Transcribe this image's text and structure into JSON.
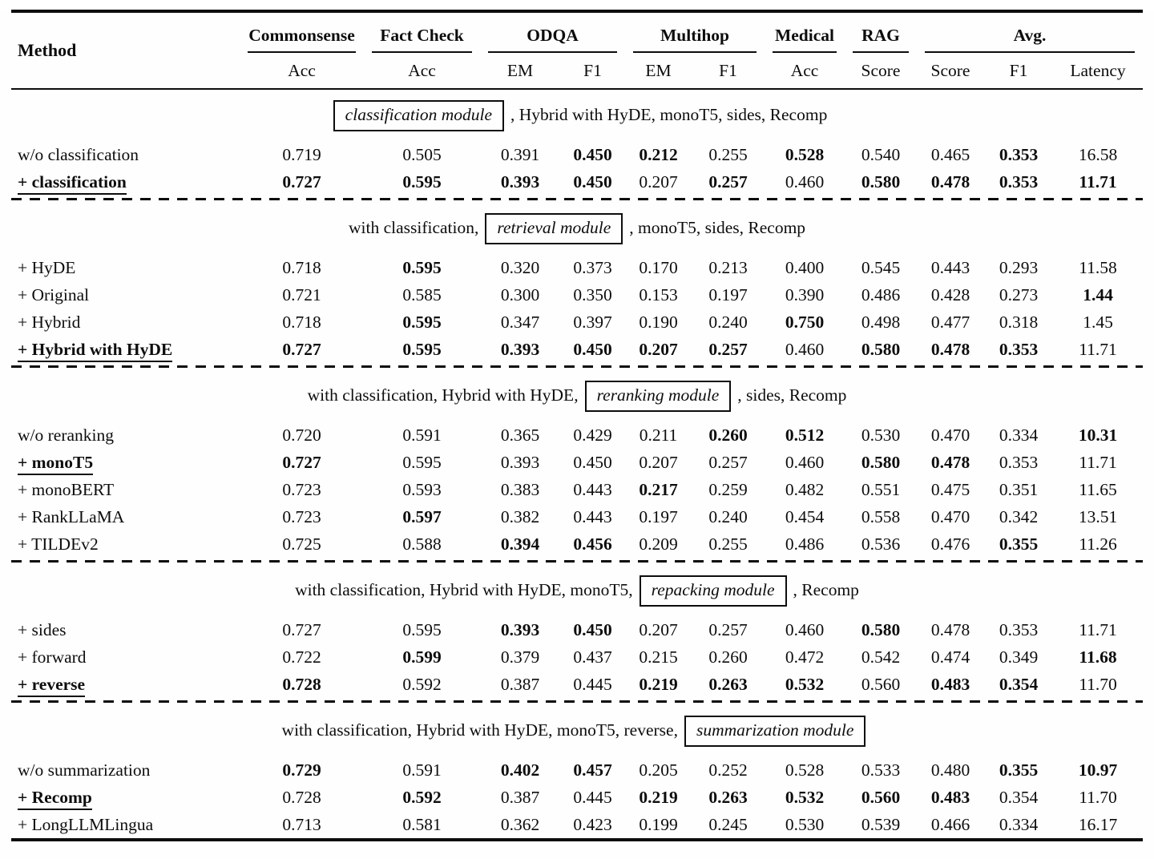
{
  "table": {
    "method_header": "Method",
    "groups": [
      {
        "label": "Commonsense",
        "subs": [
          "Acc"
        ]
      },
      {
        "label": "Fact Check",
        "subs": [
          "Acc"
        ]
      },
      {
        "label": "ODQA",
        "subs": [
          "EM",
          "F1"
        ]
      },
      {
        "label": "Multihop",
        "subs": [
          "EM",
          "F1"
        ]
      },
      {
        "label": "Medical",
        "subs": [
          "Acc"
        ]
      },
      {
        "label": "RAG",
        "subs": [
          "Score"
        ]
      },
      {
        "label": "Avg.",
        "subs": [
          "Score",
          "F1",
          "Latency"
        ]
      }
    ],
    "sections": [
      {
        "intro": [
          {
            "text": "classification module",
            "boxed": true
          },
          {
            "text": ", Hybrid with HyDE, monoT5, sides, Recomp",
            "boxed": false
          }
        ],
        "rows": [
          {
            "method": "w/o classification",
            "method_bold": false,
            "method_underline": false,
            "values": [
              "0.719",
              "0.505",
              "0.391",
              "0.450",
              "0.212",
              "0.255",
              "0.528",
              "0.540",
              "0.465",
              "0.353",
              "16.58"
            ],
            "bold": [
              0,
              0,
              0,
              1,
              1,
              0,
              1,
              0,
              0,
              1,
              0
            ]
          },
          {
            "method": "+ classification",
            "method_bold": true,
            "method_underline": true,
            "values": [
              "0.727",
              "0.595",
              "0.393",
              "0.450",
              "0.207",
              "0.257",
              "0.460",
              "0.580",
              "0.478",
              "0.353",
              "11.71"
            ],
            "bold": [
              1,
              1,
              1,
              1,
              0,
              1,
              0,
              1,
              1,
              1,
              1
            ]
          }
        ]
      },
      {
        "intro": [
          {
            "text": "with classification,",
            "boxed": false
          },
          {
            "text": "retrieval module",
            "boxed": true
          },
          {
            "text": ", monoT5, sides, Recomp",
            "boxed": false
          }
        ],
        "rows": [
          {
            "method": "+ HyDE",
            "method_bold": false,
            "method_underline": false,
            "values": [
              "0.718",
              "0.595",
              "0.320",
              "0.373",
              "0.170",
              "0.213",
              "0.400",
              "0.545",
              "0.443",
              "0.293",
              "11.58"
            ],
            "bold": [
              0,
              1,
              0,
              0,
              0,
              0,
              0,
              0,
              0,
              0,
              0
            ]
          },
          {
            "method": "+ Original",
            "method_bold": false,
            "method_underline": false,
            "values": [
              "0.721",
              "0.585",
              "0.300",
              "0.350",
              "0.153",
              "0.197",
              "0.390",
              "0.486",
              "0.428",
              "0.273",
              "1.44"
            ],
            "bold": [
              0,
              0,
              0,
              0,
              0,
              0,
              0,
              0,
              0,
              0,
              1
            ]
          },
          {
            "method": "+ Hybrid",
            "method_bold": false,
            "method_underline": false,
            "values": [
              "0.718",
              "0.595",
              "0.347",
              "0.397",
              "0.190",
              "0.240",
              "0.750",
              "0.498",
              "0.477",
              "0.318",
              "1.45"
            ],
            "bold": [
              0,
              1,
              0,
              0,
              0,
              0,
              1,
              0,
              0,
              0,
              0
            ]
          },
          {
            "method": "+ Hybrid with HyDE",
            "method_bold": true,
            "method_underline": true,
            "values": [
              "0.727",
              "0.595",
              "0.393",
              "0.450",
              "0.207",
              "0.257",
              "0.460",
              "0.580",
              "0.478",
              "0.353",
              "11.71"
            ],
            "bold": [
              1,
              1,
              1,
              1,
              1,
              1,
              0,
              1,
              1,
              1,
              0
            ]
          }
        ]
      },
      {
        "intro": [
          {
            "text": "with classification, Hybrid with HyDE,",
            "boxed": false
          },
          {
            "text": "reranking module",
            "boxed": true
          },
          {
            "text": ", sides, Recomp",
            "boxed": false
          }
        ],
        "rows": [
          {
            "method": "w/o reranking",
            "method_bold": false,
            "method_underline": false,
            "values": [
              "0.720",
              "0.591",
              "0.365",
              "0.429",
              "0.211",
              "0.260",
              "0.512",
              "0.530",
              "0.470",
              "0.334",
              "10.31"
            ],
            "bold": [
              0,
              0,
              0,
              0,
              0,
              1,
              1,
              0,
              0,
              0,
              1
            ]
          },
          {
            "method": "+ monoT5",
            "method_bold": true,
            "method_underline": true,
            "values": [
              "0.727",
              "0.595",
              "0.393",
              "0.450",
              "0.207",
              "0.257",
              "0.460",
              "0.580",
              "0.478",
              "0.353",
              "11.71"
            ],
            "bold": [
              1,
              0,
              0,
              0,
              0,
              0,
              0,
              1,
              1,
              0,
              0
            ]
          },
          {
            "method": "+ monoBERT",
            "method_bold": false,
            "method_underline": false,
            "values": [
              "0.723",
              "0.593",
              "0.383",
              "0.443",
              "0.217",
              "0.259",
              "0.482",
              "0.551",
              "0.475",
              "0.351",
              "11.65"
            ],
            "bold": [
              0,
              0,
              0,
              0,
              1,
              0,
              0,
              0,
              0,
              0,
              0
            ]
          },
          {
            "method": "+ RankLLaMA",
            "method_bold": false,
            "method_underline": false,
            "values": [
              "0.723",
              "0.597",
              "0.382",
              "0.443",
              "0.197",
              "0.240",
              "0.454",
              "0.558",
              "0.470",
              "0.342",
              "13.51"
            ],
            "bold": [
              0,
              1,
              0,
              0,
              0,
              0,
              0,
              0,
              0,
              0,
              0
            ]
          },
          {
            "method": "+ TILDEv2",
            "method_bold": false,
            "method_underline": false,
            "values": [
              "0.725",
              "0.588",
              "0.394",
              "0.456",
              "0.209",
              "0.255",
              "0.486",
              "0.536",
              "0.476",
              "0.355",
              "11.26"
            ],
            "bold": [
              0,
              0,
              1,
              1,
              0,
              0,
              0,
              0,
              0,
              1,
              0
            ]
          }
        ]
      },
      {
        "intro": [
          {
            "text": "with classification, Hybrid with HyDE, monoT5,",
            "boxed": false
          },
          {
            "text": "repacking module",
            "boxed": true
          },
          {
            "text": ", Recomp",
            "boxed": false
          }
        ],
        "rows": [
          {
            "method": "+ sides",
            "method_bold": false,
            "method_underline": false,
            "values": [
              "0.727",
              "0.595",
              "0.393",
              "0.450",
              "0.207",
              "0.257",
              "0.460",
              "0.580",
              "0.478",
              "0.353",
              "11.71"
            ],
            "bold": [
              0,
              0,
              1,
              1,
              0,
              0,
              0,
              1,
              0,
              0,
              0
            ]
          },
          {
            "method": "+ forward",
            "method_bold": false,
            "method_underline": false,
            "values": [
              "0.722",
              "0.599",
              "0.379",
              "0.437",
              "0.215",
              "0.260",
              "0.472",
              "0.542",
              "0.474",
              "0.349",
              "11.68"
            ],
            "bold": [
              0,
              1,
              0,
              0,
              0,
              0,
              0,
              0,
              0,
              0,
              1
            ]
          },
          {
            "method": "+ reverse",
            "method_bold": true,
            "method_underline": true,
            "values": [
              "0.728",
              "0.592",
              "0.387",
              "0.445",
              "0.219",
              "0.263",
              "0.532",
              "0.560",
              "0.483",
              "0.354",
              "11.70"
            ],
            "bold": [
              1,
              0,
              0,
              0,
              1,
              1,
              1,
              0,
              1,
              1,
              0
            ]
          }
        ]
      },
      {
        "intro": [
          {
            "text": "with classification, Hybrid with HyDE, monoT5, reverse,",
            "boxed": false
          },
          {
            "text": "summarization module",
            "boxed": true
          }
        ],
        "rows": [
          {
            "method": "w/o summarization",
            "method_bold": false,
            "method_underline": false,
            "values": [
              "0.729",
              "0.591",
              "0.402",
              "0.457",
              "0.205",
              "0.252",
              "0.528",
              "0.533",
              "0.480",
              "0.355",
              "10.97"
            ],
            "bold": [
              1,
              0,
              1,
              1,
              0,
              0,
              0,
              0,
              0,
              1,
              1
            ]
          },
          {
            "method": "+ Recomp",
            "method_bold": true,
            "method_underline": true,
            "values": [
              "0.728",
              "0.592",
              "0.387",
              "0.445",
              "0.219",
              "0.263",
              "0.532",
              "0.560",
              "0.483",
              "0.354",
              "11.70"
            ],
            "bold": [
              0,
              1,
              0,
              0,
              1,
              1,
              1,
              1,
              1,
              0,
              0
            ]
          },
          {
            "method": "+ LongLLMLingua",
            "method_bold": false,
            "method_underline": false,
            "values": [
              "0.713",
              "0.581",
              "0.362",
              "0.423",
              "0.199",
              "0.245",
              "0.530",
              "0.539",
              "0.466",
              "0.334",
              "16.17"
            ],
            "bold": [
              0,
              0,
              0,
              0,
              0,
              0,
              0,
              0,
              0,
              0,
              0
            ]
          }
        ]
      }
    ]
  }
}
